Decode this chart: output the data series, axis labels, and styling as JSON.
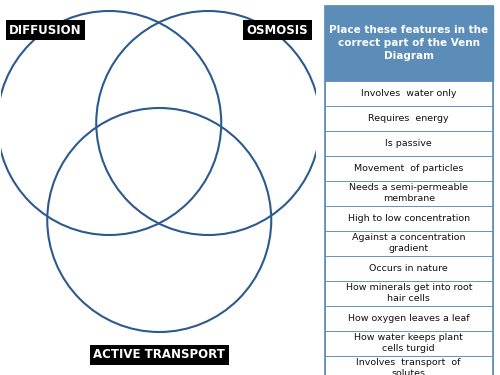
{
  "title": "Place these features in the\ncorrect part of the Venn\nDiagram",
  "title_bg": "#5b8db8",
  "title_color": "#ffffff",
  "circle_color": "#2d5a8e",
  "circle_lw": 1.5,
  "bg_color": "#ffffff",
  "labels": [
    "DIFFUSION",
    "OSMOSIS",
    "ACTIVE TRANSPORT"
  ],
  "label_bg": "#000000",
  "label_color": "#ffffff",
  "features": [
    "Involves  water only",
    "Requires  energy",
    "Is passive",
    "Movement  of particles",
    "Needs a semi-permeable\nmembrane",
    "High to low concentration",
    "Against a concentration\ngradient",
    "Occurs in nature",
    "How minerals get into root\nhair cells",
    "How oxygen leaves a leaf",
    "How water keeps plant\ncells turgid",
    "Involves  transport  of\nsolutes"
  ],
  "border_color": "#5b8db8",
  "font_size_features": 6.8,
  "font_size_labels": 8.5,
  "font_size_title": 7.5
}
